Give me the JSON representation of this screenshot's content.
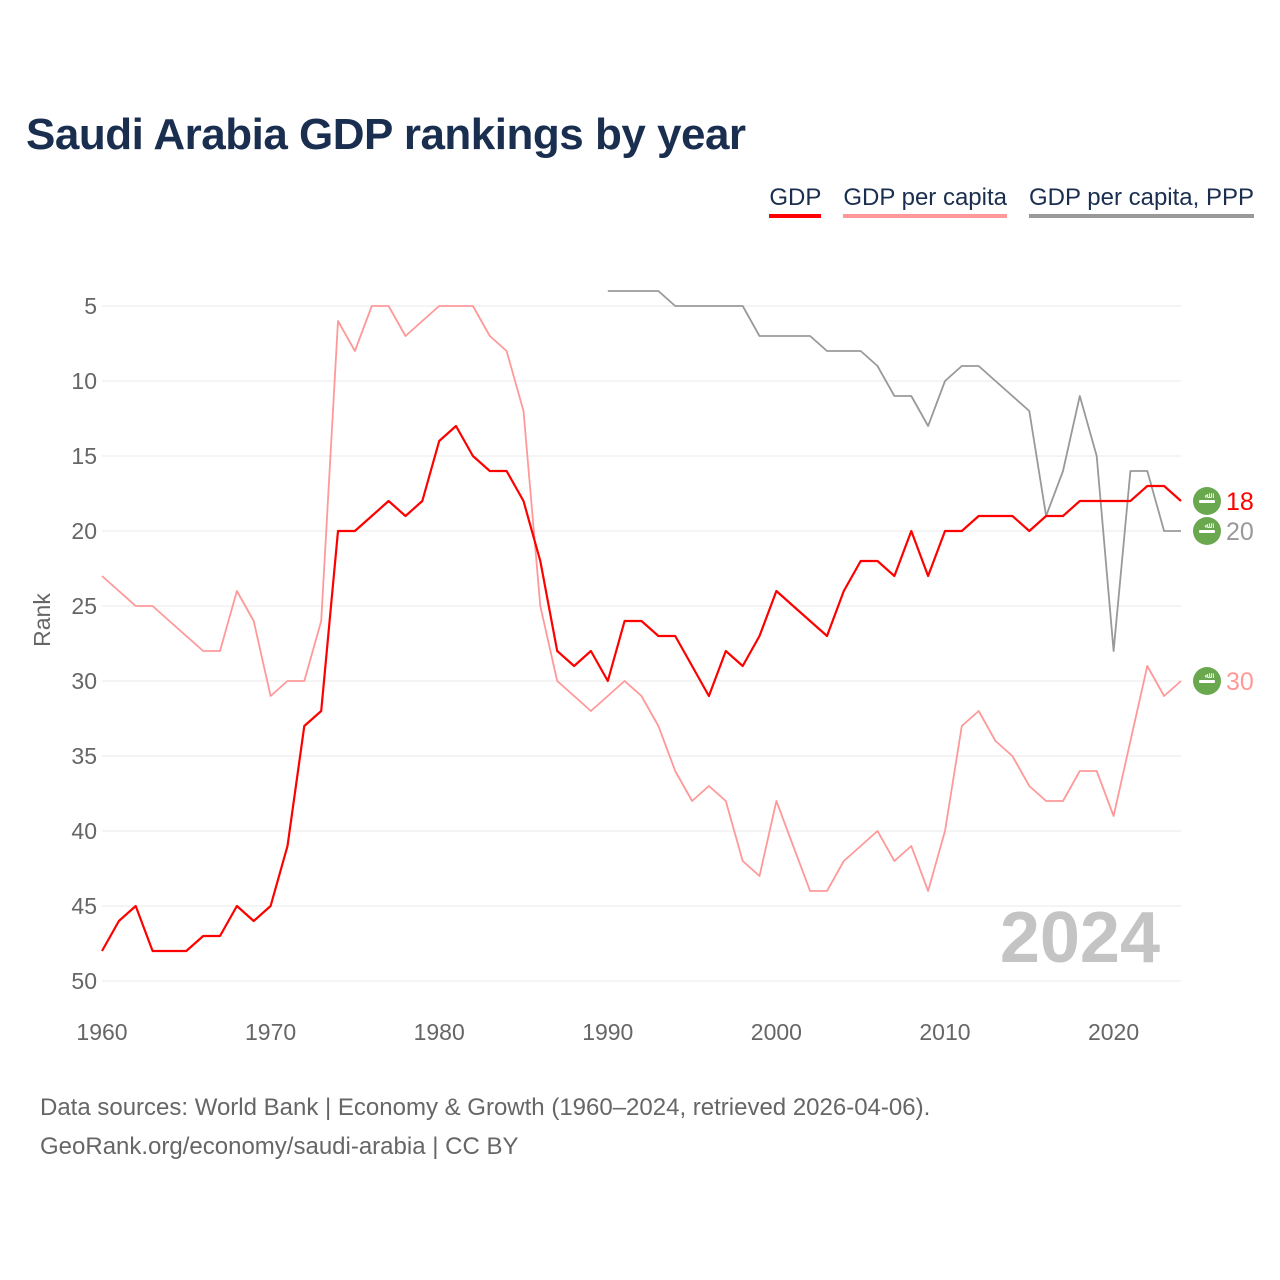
{
  "chart_data": {
    "type": "line",
    "title": "Saudi Arabia GDP rankings by year",
    "xlabel": "",
    "ylabel": "Rank",
    "xlim": [
      1960,
      2024
    ],
    "ylim": [
      51,
      3
    ],
    "y_inverted": true,
    "x_ticks": [
      1960,
      1970,
      1980,
      1990,
      2000,
      2010,
      2020
    ],
    "y_ticks": [
      5,
      10,
      15,
      20,
      25,
      30,
      35,
      40,
      45,
      50
    ],
    "grid": true,
    "legend_position": "top-right",
    "watermark_year": "2024",
    "series": [
      {
        "name": "GDP",
        "color": "#ff0000",
        "start_year": 1960,
        "end_label": "18",
        "values": [
          48,
          46,
          45,
          48,
          48,
          48,
          47,
          47,
          45,
          46,
          45,
          41,
          33,
          32,
          20,
          20,
          19,
          18,
          19,
          18,
          14,
          13,
          15,
          16,
          16,
          18,
          22,
          28,
          29,
          28,
          30,
          26,
          26,
          27,
          27,
          29,
          31,
          28,
          29,
          27,
          24,
          25,
          26,
          27,
          24,
          22,
          22,
          23,
          20,
          23,
          20,
          20,
          19,
          19,
          19,
          20,
          19,
          19,
          18,
          18,
          18,
          18,
          17,
          17,
          18
        ]
      },
      {
        "name": "GDP per capita",
        "color": "#ff9999",
        "start_year": 1960,
        "end_label": "30",
        "values": [
          23,
          24,
          25,
          25,
          26,
          27,
          28,
          28,
          24,
          26,
          31,
          30,
          30,
          26,
          6,
          8,
          5,
          5,
          7,
          6,
          5,
          5,
          5,
          7,
          8,
          12,
          25,
          30,
          31,
          32,
          31,
          30,
          31,
          33,
          36,
          38,
          37,
          38,
          42,
          43,
          38,
          41,
          44,
          44,
          42,
          41,
          40,
          42,
          41,
          44,
          40,
          33,
          32,
          34,
          35,
          37,
          38,
          38,
          36,
          36,
          39,
          34,
          29,
          31,
          30
        ]
      },
      {
        "name": "GDP per capita, PPP",
        "color": "#999999",
        "start_year": 1990,
        "end_label": "20",
        "values": [
          4,
          4,
          4,
          4,
          5,
          5,
          5,
          5,
          5,
          7,
          7,
          7,
          7,
          8,
          8,
          8,
          9,
          11,
          11,
          13,
          10,
          9,
          9,
          10,
          11,
          12,
          19,
          16,
          11,
          15,
          28,
          16,
          16,
          20,
          20
        ]
      }
    ]
  },
  "legend": [
    "GDP",
    "GDP per capita",
    "GDP per capita, PPP"
  ],
  "source_line1": "Data sources: World Bank | Economy & Growth (1960–2024, retrieved 2026-04-06).",
  "source_line2": "GeoRank.org/economy/saudi-arabia | CC BY",
  "flag_icon": "saudi-arabia-flag-icon",
  "flag_color": "#6aa84f"
}
